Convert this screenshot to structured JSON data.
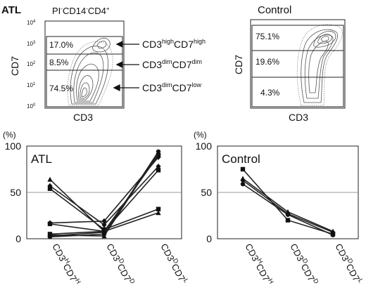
{
  "colors": {
    "ink": "#111111",
    "line": "#222222",
    "grid": "#777777",
    "contour": "#555555"
  },
  "flow_panels": {
    "atl": {
      "title": "ATL",
      "subtitle": "PI",
      "subtitle_sup1": "-",
      "subtitle_mid": "CD14",
      "subtitle_sup2": "-",
      "subtitle_tail": "CD4",
      "subtitle_sup3": "+",
      "xlabel": "CD3",
      "ylabel": "CD7",
      "y_ticks": [
        {
          "base": "10",
          "exp": "4",
          "value": 4
        },
        {
          "base": "10",
          "exp": "3",
          "value": 3
        },
        {
          "base": "10",
          "exp": "2",
          "value": 2
        },
        {
          "base": "10",
          "exp": "1",
          "value": 1
        },
        {
          "base": "10",
          "exp": "0",
          "value": 0
        }
      ],
      "gates": [
        {
          "percent": "17.0%",
          "label_base1": "CD3",
          "label_sup1": "high",
          "label_base2": "CD7",
          "label_sup2": "high"
        },
        {
          "percent": "8.5%",
          "label_base1": "CD3",
          "label_sup1": "dim",
          "label_base2": "CD7",
          "label_sup2": "dim"
        },
        {
          "percent": "74.5%",
          "label_base1": "CD3",
          "label_sup1": "dim",
          "label_base2": "CD7",
          "label_sup2": "low"
        }
      ]
    },
    "control": {
      "title": "Control",
      "xlabel": "CD3",
      "ylabel": "CD7",
      "gates": [
        {
          "percent": "75.1%"
        },
        {
          "percent": "19.6%"
        },
        {
          "percent": "4.3%"
        }
      ]
    }
  },
  "chart_data": [
    {
      "type": "line",
      "title": "ATL",
      "ylabel": "(%)",
      "ylim": [
        0,
        100
      ],
      "y_ticks": [
        0,
        50,
        100
      ],
      "gridlines": [
        50
      ],
      "categories": [
        {
          "id": "hh",
          "parts": [
            {
              "t": "CD3"
            },
            {
              "t": "H",
              "sup": true
            },
            {
              "t": "CD7"
            },
            {
              "t": "H",
              "sup": true
            }
          ]
        },
        {
          "id": "dd",
          "parts": [
            {
              "t": "CD3"
            },
            {
              "t": "D",
              "sup": true
            },
            {
              "t": "CD7"
            },
            {
              "t": "D",
              "sup": true
            }
          ]
        },
        {
          "id": "dl",
          "parts": [
            {
              "t": "CD3"
            },
            {
              "t": "D",
              "sup": true
            },
            {
              "t": "CD7"
            },
            {
              "t": "L",
              "sup": true
            }
          ]
        }
      ],
      "series": [
        {
          "marker": "triangle",
          "values": [
            64,
            8,
            28
          ]
        },
        {
          "marker": "diamond",
          "values": [
            57,
            15,
            78
          ]
        },
        {
          "marker": "square",
          "values": [
            54,
            10,
            32
          ]
        },
        {
          "marker": "diamond",
          "values": [
            17,
            19,
            88
          ]
        },
        {
          "marker": "square",
          "values": [
            16,
            8,
            90
          ]
        },
        {
          "marker": "square",
          "values": [
            5,
            8,
            74
          ]
        },
        {
          "marker": "triangle",
          "values": [
            4,
            3,
            93
          ]
        },
        {
          "marker": "circle",
          "values": [
            2,
            5,
            94
          ]
        },
        {
          "marker": "diamond",
          "values": [
            3,
            7,
            91
          ]
        }
      ]
    },
    {
      "type": "line",
      "title": "Control",
      "ylabel": "(%)",
      "ylim": [
        0,
        100
      ],
      "y_ticks": [
        0,
        50,
        100
      ],
      "gridlines": [
        50
      ],
      "categories": [
        {
          "id": "hh",
          "parts": [
            {
              "t": "CD3"
            },
            {
              "t": "H",
              "sup": true
            },
            {
              "t": "CD7"
            },
            {
              "t": "H",
              "sup": true
            }
          ]
        },
        {
          "id": "dd",
          "parts": [
            {
              "t": "CD3"
            },
            {
              "t": "D",
              "sup": true
            },
            {
              "t": "CD7"
            },
            {
              "t": "D",
              "sup": true
            }
          ]
        },
        {
          "id": "dl",
          "parts": [
            {
              "t": "CD3"
            },
            {
              "t": "D",
              "sup": true
            },
            {
              "t": "CD7"
            },
            {
              "t": "L",
              "sup": true
            }
          ]
        }
      ],
      "series": [
        {
          "marker": "square",
          "values": [
            75,
            20,
            5
          ]
        },
        {
          "marker": "triangle",
          "values": [
            65,
            29,
            8
          ]
        },
        {
          "marker": "diamond",
          "values": [
            63,
            27,
            7
          ]
        },
        {
          "marker": "circle",
          "values": [
            59,
            26,
            4
          ]
        }
      ]
    }
  ]
}
